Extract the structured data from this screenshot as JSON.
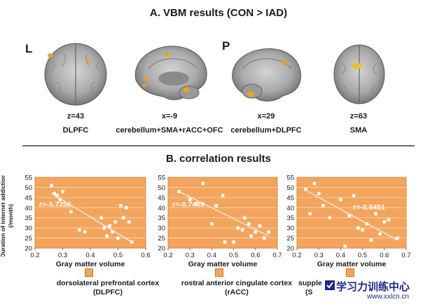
{
  "section_a": {
    "title": "A. VBM results (CON > IAD)",
    "side_labels": [
      "L",
      "P"
    ],
    "panels": [
      {
        "coord": "z=43",
        "region": "DLPFC"
      },
      {
        "coord": "x=-9",
        "region": "cerebellum+SMA+rACC+OFC"
      },
      {
        "coord": "x=29",
        "region": "cerebellum+DLPFC"
      },
      {
        "coord": "z=63",
        "region": "SMA"
      }
    ]
  },
  "section_b": {
    "title": "B. correlation results",
    "ylabel_line1": "Duration of internet addiction",
    "ylabel_line2": "(/month)",
    "xlabel": "Gray matter volume",
    "captions": [
      {
        "line1": "dorsolateral prefrontal cortex",
        "line2": "(DLPFC)"
      },
      {
        "line1": "rostral anterior cingulate cortex",
        "line2": "(rACC)"
      },
      {
        "line1": "supple",
        "line2": "(S"
      }
    ]
  },
  "watermark": {
    "text": "学习力训练中心",
    "url": "www.xxlcn.cn"
  },
  "colors": {
    "plot_bg": "#f3a55e",
    "point": "#ffffff",
    "fit_line": "#ffffff",
    "label": "#ffffff"
  },
  "chart_data": [
    {
      "type": "scatter",
      "xlabel": "Gray matter volume",
      "ylabel": "Duration of internet addiction (/month)",
      "xlim": [
        0.2,
        0.6
      ],
      "ylim": [
        20,
        55
      ],
      "xticks": [
        "0.2",
        "0.3",
        "0.4",
        "0.5",
        "0.6"
      ],
      "yticks": [
        "20",
        "25",
        "30",
        "35",
        "40",
        "45",
        "50",
        "55"
      ],
      "annotation": "r=-0.7256",
      "fit": [
        [
          0.26,
          47
        ],
        [
          0.55,
          23
        ]
      ],
      "x": [
        0.26,
        0.27,
        0.28,
        0.29,
        0.3,
        0.33,
        0.36,
        0.38,
        0.44,
        0.45,
        0.46,
        0.47,
        0.48,
        0.49,
        0.5,
        0.51,
        0.52,
        0.53,
        0.54,
        0.55
      ],
      "y": [
        51,
        47,
        46,
        44,
        48,
        38,
        29,
        28,
        35,
        30,
        26,
        31,
        28,
        33,
        25,
        41,
        35,
        40,
        33,
        23
      ]
    },
    {
      "type": "scatter",
      "xlabel": "Gray matter volume",
      "ylabel": "",
      "xlim": [
        0.2,
        0.7
      ],
      "ylim": [
        20,
        55
      ],
      "xticks": [
        "0.2",
        "0.3",
        "0.4",
        "0.5",
        "0.6",
        "0.7"
      ],
      "yticks": [
        "20",
        "25",
        "30",
        "35",
        "40",
        "45",
        "50",
        "55"
      ],
      "annotation": "r=-0.7409",
      "fit": [
        [
          0.25,
          48
        ],
        [
          0.66,
          26
        ]
      ],
      "x": [
        0.25,
        0.3,
        0.33,
        0.36,
        0.4,
        0.42,
        0.45,
        0.46,
        0.5,
        0.52,
        0.54,
        0.55,
        0.57,
        0.58,
        0.6,
        0.62,
        0.64,
        0.66
      ],
      "y": [
        48,
        44,
        42,
        52,
        32,
        41,
        46,
        23,
        23,
        30,
        29,
        35,
        32,
        26,
        28,
        31,
        25,
        28
      ]
    },
    {
      "type": "scatter",
      "xlabel": "Gray matter volume",
      "ylabel": "",
      "xlim": [
        0.2,
        0.7
      ],
      "ylim": [
        20,
        55
      ],
      "xticks": [
        "0.2",
        "0.3",
        "0.4",
        "0.5",
        "0.6",
        "0.7"
      ],
      "yticks": [
        "20",
        "25",
        "30",
        "35",
        "40",
        "45",
        "50",
        "55"
      ],
      "annotation": "r=-0.6451",
      "fit": [
        [
          0.25,
          48
        ],
        [
          0.66,
          24
        ]
      ],
      "x": [
        0.24,
        0.26,
        0.28,
        0.3,
        0.32,
        0.35,
        0.4,
        0.42,
        0.44,
        0.46,
        0.48,
        0.5,
        0.52,
        0.54,
        0.56,
        0.58,
        0.6,
        0.62,
        0.66
      ],
      "y": [
        49,
        37,
        52,
        47,
        41,
        35,
        44,
        21,
        36,
        46,
        30,
        29,
        32,
        24,
        37,
        27,
        33,
        34,
        25
      ]
    }
  ]
}
